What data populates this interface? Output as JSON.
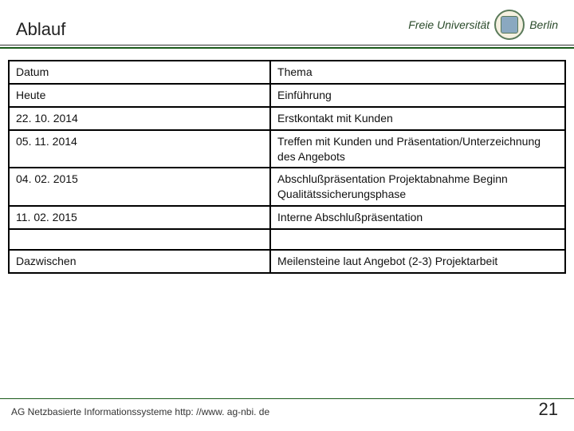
{
  "header": {
    "title": "Ablauf",
    "logo_left": "Freie Universität",
    "logo_right": "Berlin"
  },
  "table": {
    "type": "table",
    "border_color": "#000000",
    "border_width": 2.5,
    "background_color": "#ffffff",
    "font_size": 14,
    "columns": [
      "Datum",
      "Thema"
    ],
    "column_widths_pct": [
      47,
      53
    ],
    "rows": [
      [
        "Datum",
        "Thema"
      ],
      [
        "Heute",
        "Einführung"
      ],
      [
        "22. 10. 2014",
        "Erstkontakt mit Kunden"
      ],
      [
        "05. 11. 2014",
        "Treffen mit Kunden und Präsentation/Unterzeichnung des Angebots"
      ],
      [
        "04. 02. 2015",
        "Abschlußpräsentation Projektabnahme Beginn Qualitätssicherungsphase"
      ],
      [
        "11. 02. 2015",
        "Interne Abschlußpräsentation"
      ],
      [
        "",
        ""
      ],
      [
        "Dazwischen",
        "Meilensteine laut Angebot (2-3) Projektarbeit"
      ]
    ]
  },
  "footer": {
    "text": "AG Netzbasierte Informationssysteme http: //www. ag-nbi. de",
    "page": "21"
  },
  "colors": {
    "rule_green": "#1a5a1a",
    "rule_dark": "#333333",
    "text": "#111111"
  }
}
